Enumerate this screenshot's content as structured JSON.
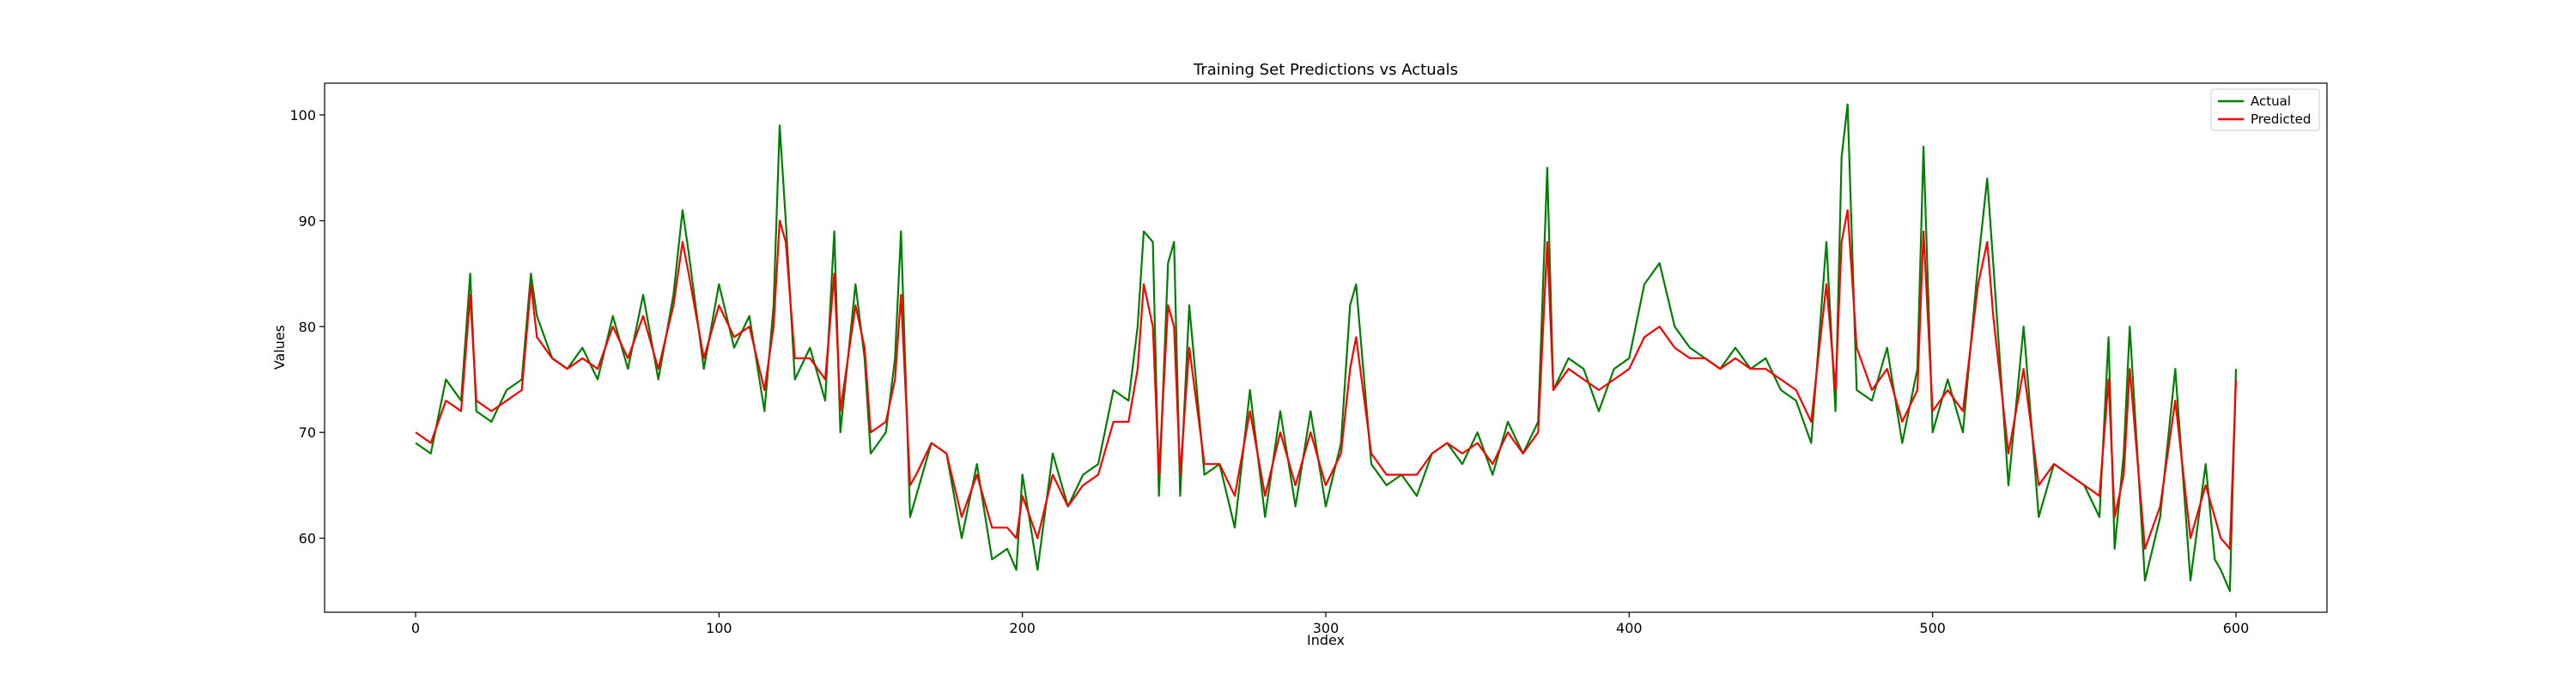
{
  "chart_data": {
    "type": "line",
    "title": "Training Set Predictions vs Actuals",
    "xlabel": "Index",
    "ylabel": "Values",
    "xlim": [
      -30,
      630
    ],
    "ylim": [
      53,
      103
    ],
    "xticks": [
      0,
      100,
      200,
      300,
      400,
      500,
      600
    ],
    "yticks": [
      60,
      70,
      80,
      90,
      100
    ],
    "legend": {
      "position": "top-right"
    },
    "series": [
      {
        "name": "Actual",
        "color": "#008000",
        "x": [
          0,
          5,
          10,
          15,
          18,
          20,
          25,
          30,
          35,
          38,
          40,
          45,
          50,
          55,
          60,
          65,
          70,
          75,
          80,
          85,
          88,
          90,
          95,
          100,
          105,
          110,
          115,
          118,
          120,
          122,
          125,
          130,
          135,
          138,
          140,
          145,
          148,
          150,
          155,
          158,
          160,
          163,
          165,
          170,
          175,
          180,
          185,
          190,
          195,
          198,
          200,
          205,
          210,
          215,
          220,
          225,
          230,
          235,
          238,
          240,
          243,
          245,
          248,
          250,
          252,
          255,
          260,
          265,
          270,
          275,
          280,
          285,
          290,
          295,
          300,
          305,
          308,
          310,
          315,
          320,
          325,
          330,
          335,
          340,
          345,
          350,
          355,
          360,
          365,
          370,
          373,
          375,
          380,
          385,
          390,
          395,
          400,
          405,
          410,
          415,
          420,
          425,
          430,
          435,
          440,
          445,
          450,
          455,
          460,
          465,
          468,
          470,
          472,
          475,
          480,
          485,
          490,
          495,
          497,
          500,
          505,
          510,
          515,
          518,
          520,
          525,
          530,
          535,
          540,
          545,
          550,
          555,
          558,
          560,
          563,
          565,
          570,
          575,
          580,
          585,
          590,
          593,
          595,
          598,
          600
        ],
        "values": [
          69,
          68,
          75,
          73,
          85,
          72,
          71,
          74,
          75,
          85,
          81,
          77,
          76,
          78,
          75,
          81,
          76,
          83,
          75,
          83,
          91,
          87,
          76,
          84,
          78,
          81,
          72,
          82,
          99,
          90,
          75,
          78,
          73,
          89,
          70,
          84,
          77,
          68,
          70,
          77,
          89,
          62,
          64,
          69,
          68,
          60,
          67,
          58,
          59,
          57,
          66,
          57,
          68,
          63,
          66,
          67,
          74,
          73,
          80,
          89,
          88,
          64,
          86,
          88,
          64,
          82,
          66,
          67,
          61,
          74,
          62,
          72,
          63,
          72,
          63,
          69,
          82,
          84,
          67,
          65,
          66,
          64,
          68,
          69,
          67,
          70,
          66,
          71,
          68,
          71,
          95,
          74,
          77,
          76,
          72,
          76,
          77,
          84,
          86,
          80,
          78,
          77,
          76,
          78,
          76,
          77,
          74,
          73,
          69,
          88,
          72,
          96,
          101,
          74,
          73,
          78,
          69,
          76,
          97,
          70,
          75,
          70,
          86,
          94,
          86,
          65,
          80,
          62,
          67,
          66,
          65,
          62,
          79,
          59,
          68,
          80,
          56,
          62,
          76,
          56,
          67,
          58,
          57,
          55,
          76
        ]
      },
      {
        "name": "Predicted",
        "color": "#ff0000",
        "x": [
          0,
          5,
          10,
          15,
          18,
          20,
          25,
          30,
          35,
          38,
          40,
          45,
          50,
          55,
          60,
          65,
          70,
          75,
          80,
          85,
          88,
          90,
          95,
          100,
          105,
          110,
          115,
          118,
          120,
          122,
          125,
          130,
          135,
          138,
          140,
          145,
          148,
          150,
          155,
          158,
          160,
          163,
          165,
          170,
          175,
          180,
          185,
          190,
          195,
          198,
          200,
          205,
          210,
          215,
          220,
          225,
          230,
          235,
          238,
          240,
          243,
          245,
          248,
          250,
          252,
          255,
          260,
          265,
          270,
          275,
          280,
          285,
          290,
          295,
          300,
          305,
          308,
          310,
          315,
          320,
          325,
          330,
          335,
          340,
          345,
          350,
          355,
          360,
          365,
          370,
          373,
          375,
          380,
          385,
          390,
          395,
          400,
          405,
          410,
          415,
          420,
          425,
          430,
          435,
          440,
          445,
          450,
          455,
          460,
          465,
          468,
          470,
          472,
          475,
          480,
          485,
          490,
          495,
          497,
          500,
          505,
          510,
          515,
          518,
          520,
          525,
          530,
          535,
          540,
          545,
          550,
          555,
          558,
          560,
          563,
          565,
          570,
          575,
          580,
          585,
          590,
          593,
          595,
          598,
          600
        ],
        "values": [
          70,
          69,
          73,
          72,
          83,
          73,
          72,
          73,
          74,
          84,
          79,
          77,
          76,
          77,
          76,
          80,
          77,
          81,
          76,
          82,
          88,
          85,
          77,
          82,
          79,
          80,
          74,
          80,
          90,
          88,
          77,
          77,
          75,
          85,
          72,
          82,
          78,
          70,
          71,
          75,
          83,
          65,
          66,
          69,
          68,
          62,
          66,
          61,
          61,
          60,
          64,
          60,
          66,
          63,
          65,
          66,
          71,
          71,
          76,
          84,
          80,
          66,
          82,
          80,
          66,
          78,
          67,
          67,
          64,
          72,
          64,
          70,
          65,
          70,
          65,
          68,
          76,
          79,
          68,
          66,
          66,
          66,
          68,
          69,
          68,
          69,
          67,
          70,
          68,
          70,
          88,
          74,
          76,
          75,
          74,
          75,
          76,
          79,
          80,
          78,
          77,
          77,
          76,
          77,
          76,
          76,
          75,
          74,
          71,
          84,
          74,
          88,
          91,
          78,
          74,
          76,
          71,
          74,
          89,
          72,
          74,
          72,
          84,
          88,
          81,
          68,
          76,
          65,
          67,
          66,
          65,
          64,
          75,
          62,
          66,
          76,
          59,
          63,
          73,
          60,
          65,
          62,
          60,
          59,
          75
        ]
      }
    ]
  }
}
